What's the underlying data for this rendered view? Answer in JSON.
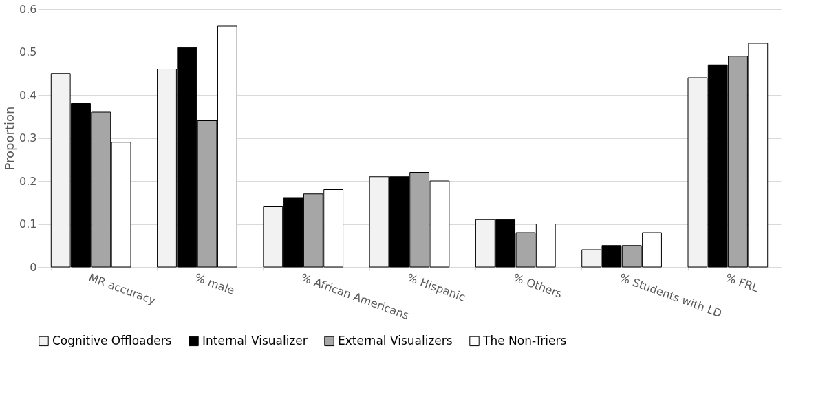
{
  "chart_data": {
    "type": "bar",
    "ylabel": "Proportion",
    "categories": [
      "MR accuracy",
      "% male",
      "% African Americans",
      "% Hispanic",
      "% Others",
      "% Students with LD",
      "% FRL"
    ],
    "series": [
      {
        "name": "Cognitive Offloaders",
        "color": "#f2f2f2",
        "values": [
          0.45,
          0.46,
          0.14,
          0.21,
          0.11,
          0.04,
          0.44
        ]
      },
      {
        "name": "Internal Visualizer",
        "color": "#000000",
        "values": [
          0.38,
          0.51,
          0.16,
          0.21,
          0.11,
          0.05,
          0.47
        ]
      },
      {
        "name": "External Visualizers",
        "color": "#a6a6a6",
        "values": [
          0.36,
          0.34,
          0.17,
          0.22,
          0.08,
          0.05,
          0.49
        ]
      },
      {
        "name": "The Non-Triers",
        "color": "#ffffff",
        "values": [
          0.29,
          0.56,
          0.18,
          0.2,
          0.1,
          0.08,
          0.52
        ]
      }
    ],
    "ylim": [
      0,
      0.6
    ],
    "yticks": [
      0,
      0.1,
      0.2,
      0.3,
      0.4,
      0.5,
      0.6
    ],
    "grid": "y",
    "legend": "bottom"
  }
}
